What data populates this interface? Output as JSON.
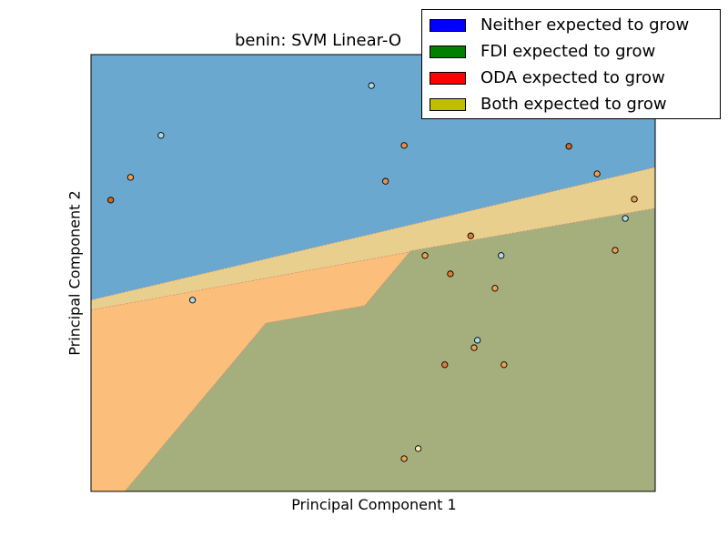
{
  "chart_data": {
    "type": "scatter",
    "title": "benin: SVM Linear-O",
    "xlabel": "Principal Component 1",
    "ylabel": "Principal Component 2",
    "xlim": [
      0,
      1
    ],
    "ylim": [
      0,
      1
    ],
    "grid": false,
    "ticks": false,
    "legend": {
      "position": "top-right",
      "entries": [
        {
          "label": "Neither expected to grow",
          "color": "#0000ff"
        },
        {
          "label": "FDI expected to grow",
          "color": "#008000"
        },
        {
          "label": "ODA expected to grow",
          "color": "#ff0000"
        },
        {
          "label": "Both expected to grow",
          "color": "#bfbf00"
        }
      ]
    },
    "regions": [
      {
        "class": "Neither expected to grow",
        "color": "#6aa8d0",
        "polygon": [
          [
            0,
            0.438
          ],
          [
            1,
            0.742
          ],
          [
            1,
            1
          ],
          [
            0,
            1
          ]
        ]
      },
      {
        "class": "Both expected to grow",
        "color": "#e8cf8d",
        "polygon": [
          [
            0,
            0.438
          ],
          [
            1,
            0.742
          ],
          [
            1,
            0.648
          ],
          [
            0.565,
            0.55
          ],
          [
            0.565,
            0.548
          ],
          [
            0,
            0.415
          ]
        ]
      },
      {
        "class": "ODA expected to grow",
        "color": "#fcbf7b",
        "polygon": [
          [
            0,
            0.415
          ],
          [
            0.565,
            0.548
          ],
          [
            0.485,
            0.425
          ],
          [
            0.31,
            0.385
          ],
          [
            0.06,
            0
          ],
          [
            0,
            0
          ]
        ]
      },
      {
        "class": "FDI expected to grow",
        "color": "#a5af7e",
        "polygon": [
          [
            0.06,
            0
          ],
          [
            0.31,
            0.385
          ],
          [
            0.485,
            0.425
          ],
          [
            0.565,
            0.548
          ],
          [
            0.565,
            0.55
          ],
          [
            1,
            0.648
          ],
          [
            1,
            0
          ]
        ]
      }
    ],
    "points": [
      {
        "x": 0.124,
        "y": 0.815,
        "color": "#add8e6"
      },
      {
        "x": 0.035,
        "y": 0.667,
        "color": "#d2691e"
      },
      {
        "x": 0.07,
        "y": 0.719,
        "color": "#f0a050"
      },
      {
        "x": 0.497,
        "y": 0.929,
        "color": "#add8e6"
      },
      {
        "x": 0.555,
        "y": 0.792,
        "color": "#e8904a"
      },
      {
        "x": 0.522,
        "y": 0.71,
        "color": "#e8904a"
      },
      {
        "x": 0.847,
        "y": 0.79,
        "color": "#d2691e"
      },
      {
        "x": 0.897,
        "y": 0.727,
        "color": "#f0a050"
      },
      {
        "x": 0.963,
        "y": 0.669,
        "color": "#f0a050"
      },
      {
        "x": 0.947,
        "y": 0.625,
        "color": "#add8e6"
      },
      {
        "x": 0.673,
        "y": 0.585,
        "color": "#e07b39"
      },
      {
        "x": 0.727,
        "y": 0.54,
        "color": "#add8e6"
      },
      {
        "x": 0.592,
        "y": 0.54,
        "color": "#f0a050"
      },
      {
        "x": 0.637,
        "y": 0.498,
        "color": "#e07b39"
      },
      {
        "x": 0.929,
        "y": 0.552,
        "color": "#f0a050"
      },
      {
        "x": 0.18,
        "y": 0.438,
        "color": "#add8e6"
      },
      {
        "x": 0.716,
        "y": 0.465,
        "color": "#f0a050"
      },
      {
        "x": 0.685,
        "y": 0.346,
        "color": "#add8e6"
      },
      {
        "x": 0.679,
        "y": 0.329,
        "color": "#f0a050"
      },
      {
        "x": 0.627,
        "y": 0.29,
        "color": "#e07b39"
      },
      {
        "x": 0.732,
        "y": 0.29,
        "color": "#f0a050"
      },
      {
        "x": 0.58,
        "y": 0.098,
        "color": "#ffe4b5"
      },
      {
        "x": 0.555,
        "y": 0.075,
        "color": "#f0a050"
      }
    ]
  }
}
